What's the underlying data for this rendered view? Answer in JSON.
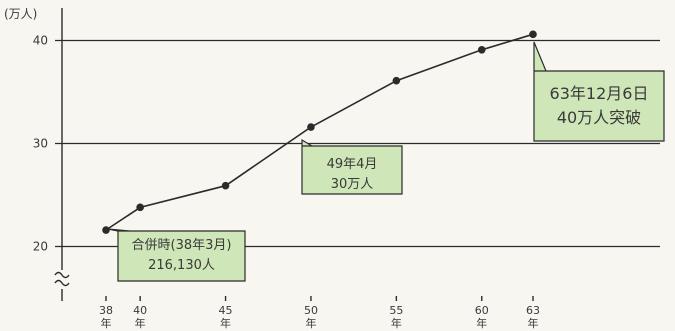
{
  "chart_data": {
    "type": "line",
    "unit_label": "(万人)",
    "x": [
      38,
      40,
      45,
      50,
      55,
      60,
      63
    ],
    "x_tick_labels": [
      {
        "x": 38,
        "num": "38",
        "suffix": "年"
      },
      {
        "x": 40,
        "num": "40",
        "suffix": "年"
      },
      {
        "x": 45,
        "num": "45",
        "suffix": "年"
      },
      {
        "x": 50,
        "num": "50",
        "suffix": "年"
      },
      {
        "x": 55,
        "num": "55",
        "suffix": "年"
      },
      {
        "x": 60,
        "num": "60",
        "suffix": "年"
      },
      {
        "x": 63,
        "num": "63",
        "suffix": "年"
      }
    ],
    "values": [
      21.6,
      23.8,
      25.9,
      31.6,
      36.1,
      39.1,
      40.6
    ],
    "yticks": [
      20,
      30,
      40
    ],
    "ylim": [
      17,
      43
    ],
    "xlim": [
      34,
      70
    ],
    "axis_break": true,
    "grid": true,
    "annotations": [
      {
        "id": "merger",
        "x": 38,
        "y": 21.6,
        "lines": [
          "合併時(38年3月)",
          "216,130人"
        ]
      },
      {
        "id": "300k",
        "x": 49.3,
        "y": 30,
        "lines": [
          "49年4月",
          "30万人"
        ]
      },
      {
        "id": "400k",
        "x": 63,
        "y": 40.6,
        "lines": [
          "63年12月6日",
          "40万人突破"
        ]
      }
    ]
  }
}
